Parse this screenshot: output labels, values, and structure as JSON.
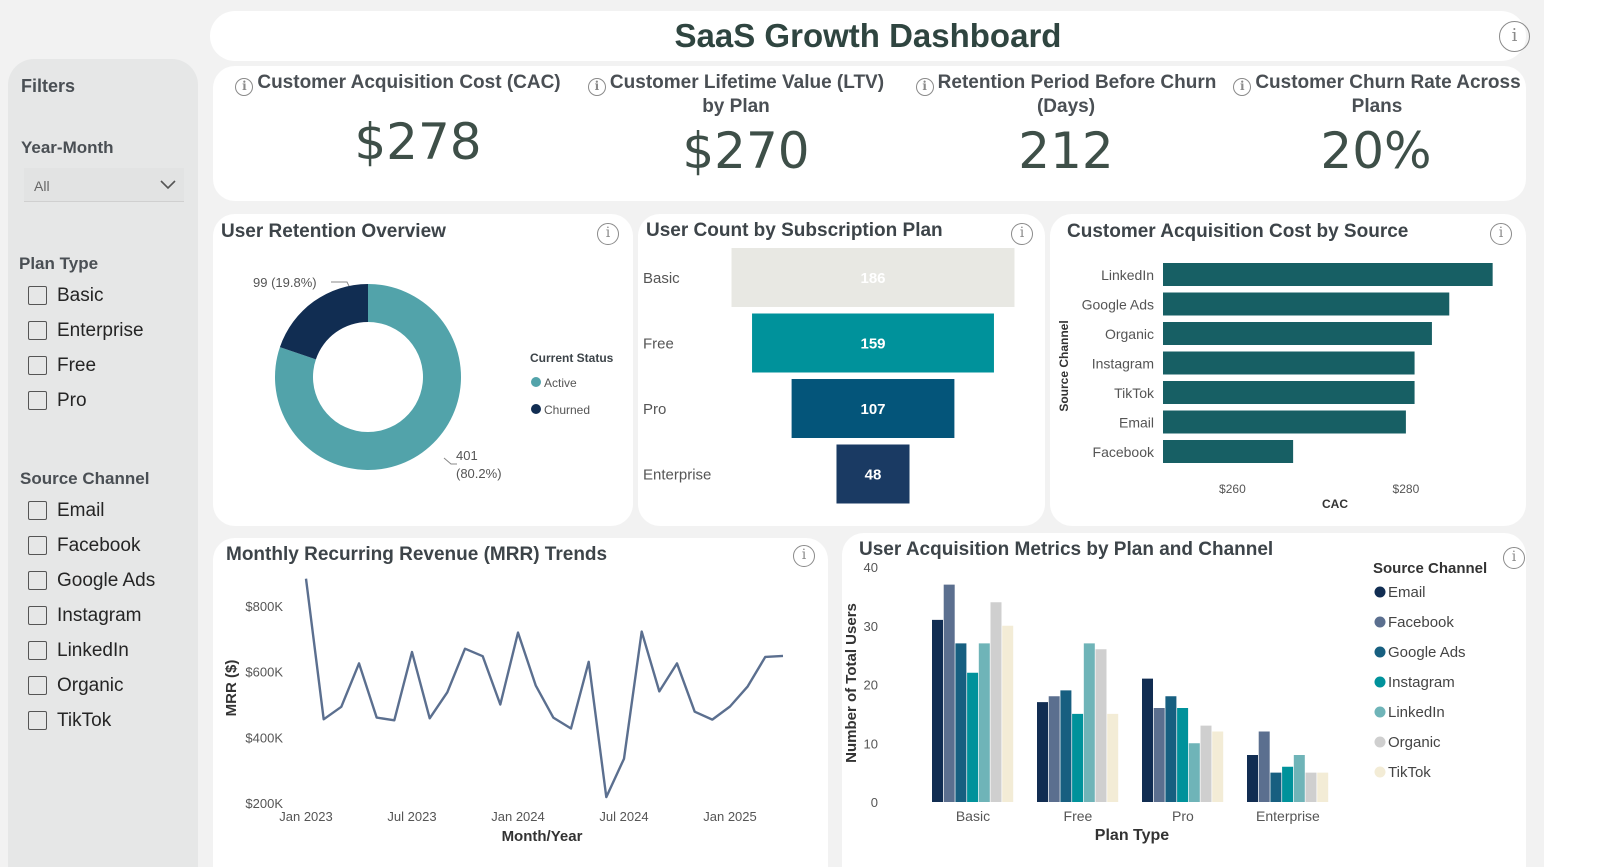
{
  "header": {
    "title": "SaaS Growth Dashboard"
  },
  "filters": {
    "title": "Filters",
    "year_month": {
      "label": "Year-Month",
      "value": "All"
    },
    "plan_type": {
      "label": "Plan Type",
      "options": [
        "Basic",
        "Enterprise",
        "Free",
        "Pro"
      ]
    },
    "source_channel": {
      "label": "Source Channel",
      "options": [
        "Email",
        "Facebook",
        "Google Ads",
        "Instagram",
        "LinkedIn",
        "Organic",
        "TikTok"
      ]
    }
  },
  "kpis": [
    {
      "title": "Customer Acquisition Cost (CAC)",
      "value": "$278"
    },
    {
      "title": "Customer Lifetime Value (LTV) by Plan",
      "value": "$270"
    },
    {
      "title": "Retention Period Before Churn (Days)",
      "value": "212"
    },
    {
      "title": "Customer Churn Rate Across Plans",
      "value": "20%"
    }
  ],
  "colors": {
    "active": "#52a3aa",
    "churned": "#112d52",
    "funnel_basic": "#e8e8e3",
    "funnel_free": "#00929b",
    "funnel_pro": "#04557a",
    "funnel_enterprise": "#1a3a63",
    "cac_bar": "#175f64",
    "mrr_line": "#5b6f8f"
  },
  "retention": {
    "title": "User Retention Overview",
    "legend_title": "Current Status",
    "chart_data": {
      "type": "pie",
      "categories": [
        "Active",
        "Churned"
      ],
      "values": [
        401,
        99
      ],
      "labels": [
        "401 (80.2%)",
        "99 (19.8%)"
      ],
      "legend": "right"
    }
  },
  "subscription": {
    "title": "User Count by Subscription Plan",
    "chart_data": {
      "type": "bar",
      "categories": [
        "Basic",
        "Free",
        "Pro",
        "Enterprise"
      ],
      "values": [
        186,
        159,
        107,
        48
      ]
    }
  },
  "cac_source": {
    "title": "Customer Acquisition Cost by Source",
    "chart_data": {
      "type": "bar",
      "orientation": "horizontal",
      "categories": [
        "LinkedIn",
        "Google Ads",
        "Organic",
        "Instagram",
        "TikTok",
        "Email",
        "Facebook"
      ],
      "values": [
        290,
        285,
        283,
        281,
        281,
        280,
        267
      ],
      "xlabel": "CAC",
      "ylabel": "Source Channel",
      "xticks": [
        "$260",
        "$280"
      ],
      "xlim": [
        252,
        292
      ]
    }
  },
  "mrr": {
    "title": "Monthly Recurring Revenue (MRR) Trends",
    "chart_data": {
      "type": "line",
      "xlabel": "Month/Year",
      "ylabel": "MRR ($)",
      "xticks": [
        "Jan 2023",
        "Jul 2023",
        "Jan 2024",
        "Jul 2024",
        "Jan 2025"
      ],
      "yticks": [
        "$800K",
        "$600K",
        "$400K",
        "$200K"
      ],
      "ylim": [
        200,
        870
      ],
      "x": [
        "Jan 2023",
        "Feb 2023",
        "Mar 2023",
        "Apr 2023",
        "May 2023",
        "Jun 2023",
        "Jul 2023",
        "Aug 2023",
        "Sep 2023",
        "Oct 2023",
        "Nov 2023",
        "Dec 2023",
        "Jan 2024",
        "Feb 2024",
        "Mar 2024",
        "Apr 2024",
        "May 2024",
        "Jun 2024",
        "Jul 2024",
        "Aug 2024",
        "Sep 2024",
        "Oct 2024",
        "Nov 2024",
        "Dec 2024",
        "Jan 2025",
        "Feb 2025",
        "Mar 2025",
        "Apr 2025"
      ],
      "values": [
        883,
        455,
        493,
        625,
        460,
        452,
        660,
        458,
        537,
        670,
        647,
        500,
        719,
        558,
        460,
        427,
        630,
        218,
        335,
        722,
        540,
        625,
        478,
        454,
        494,
        555,
        645,
        648
      ]
    }
  },
  "acquisition": {
    "title": "User Acquisition Metrics by Plan and Channel",
    "legend_title": "Source Channel",
    "chart_data": {
      "type": "bar",
      "categories": [
        "Basic",
        "Free",
        "Pro",
        "Enterprise"
      ],
      "xlabel": "Plan Type",
      "ylabel": "Number of Total Users",
      "ylim": [
        0,
        40
      ],
      "yticks": [
        "40",
        "30",
        "20",
        "10",
        "0"
      ],
      "legend": "right",
      "series": [
        {
          "name": "Email",
          "values": [
            31,
            17,
            21,
            8
          ],
          "color": "#112d52"
        },
        {
          "name": "Facebook",
          "values": [
            37,
            18,
            16,
            12
          ],
          "color": "#5b6f8f"
        },
        {
          "name": "Google Ads",
          "values": [
            27,
            19,
            18,
            5
          ],
          "color": "#175f80"
        },
        {
          "name": "Instagram",
          "values": [
            22,
            15,
            16,
            6
          ],
          "color": "#00929b"
        },
        {
          "name": "LinkedIn",
          "values": [
            27,
            27,
            10,
            8
          ],
          "color": "#6fb4b8"
        },
        {
          "name": "Organic",
          "values": [
            34,
            26,
            13,
            5
          ],
          "color": "#cfcfcf"
        },
        {
          "name": "TikTok",
          "values": [
            30,
            15,
            12,
            5
          ],
          "color": "#f3ecd6"
        }
      ]
    }
  }
}
